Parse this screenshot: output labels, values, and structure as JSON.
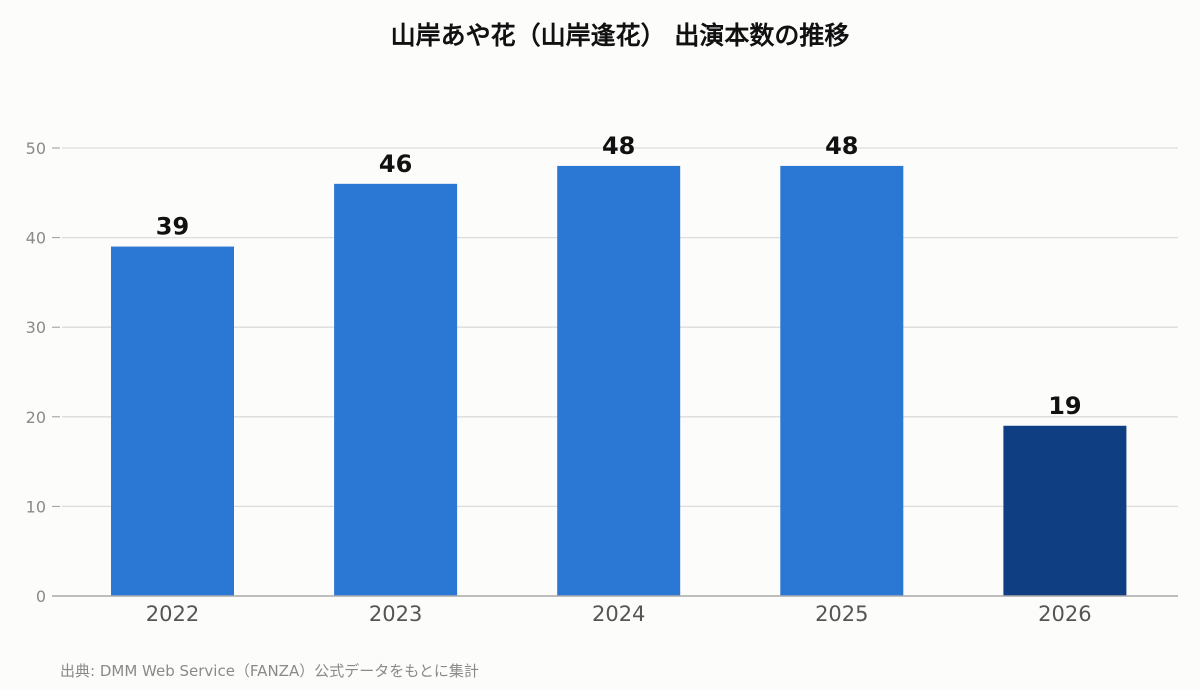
{
  "chart_data": {
    "type": "bar",
    "title": "山岸あや花（山岸逢花） 出演本数の推移",
    "categories": [
      "2022",
      "2023",
      "2024",
      "2025",
      "2026"
    ],
    "values": [
      39,
      46,
      48,
      48,
      19
    ],
    "data_labels": [
      "39",
      "46",
      "48",
      "48",
      "19"
    ],
    "ylim": [
      0,
      50
    ],
    "yticks": [
      0,
      10,
      20,
      30,
      40,
      50
    ],
    "ytick_labels": [
      "0",
      "10",
      "20",
      "30",
      "40",
      "50"
    ],
    "xlabel": "",
    "ylabel": "",
    "grid": true,
    "legend": "none",
    "colors": {
      "bar": "#2b78d4",
      "highlight_bar": "#0f3f82",
      "grid": "#dddddd",
      "axis": "#aaaaaa"
    },
    "highlight_index": 4
  },
  "source": "出典: DMM Web Service（FANZA）公式データをもとに集計"
}
